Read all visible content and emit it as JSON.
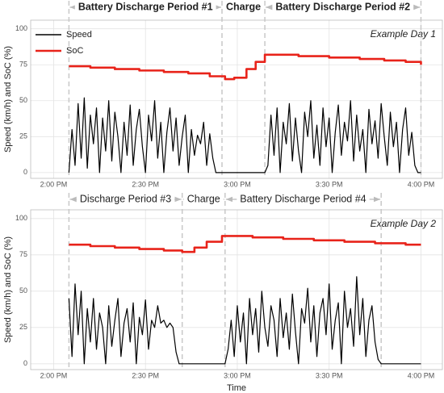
{
  "chart_data": [
    {
      "type": "line",
      "title": "Example Day 1",
      "legend": "top-left",
      "grid": true,
      "ylabel": "Speed (km/h) and SoC (%)",
      "xlim": [
        832.5,
        967
      ],
      "ylim": [
        -4,
        106
      ],
      "xticks": [
        {
          "value": 840,
          "label": "2:00 PM"
        },
        {
          "value": 870,
          "label": "2:30 PM"
        },
        {
          "value": 900,
          "label": "3:00 PM"
        },
        {
          "value": 930,
          "label": "3:30 PM"
        },
        {
          "value": 960,
          "label": "4:00 PM"
        }
      ],
      "yticks": [
        0,
        25,
        50,
        75,
        100
      ],
      "periods": [
        {
          "label": "Battery Discharge Period #1",
          "start": 845,
          "end": 895
        },
        {
          "label": "Charge",
          "start": 895,
          "end": 909
        },
        {
          "label": "Battery Discharge Period #2",
          "start": 909,
          "end": 960
        }
      ],
      "series": [
        {
          "name": "Speed",
          "color": "#000000",
          "step": false,
          "x": [
            845,
            846,
            847,
            848,
            849,
            850,
            851,
            852,
            853,
            854,
            855,
            856,
            857,
            858,
            859,
            860,
            861,
            862,
            863,
            864,
            865,
            866,
            867,
            868,
            869,
            870,
            871,
            872,
            873,
            874,
            875,
            876,
            877,
            878,
            879,
            880,
            881,
            882,
            883,
            884,
            885,
            886,
            887,
            888,
            889,
            890,
            891,
            892,
            893,
            894,
            895,
            896,
            897,
            898,
            899,
            900,
            901,
            902,
            903,
            904,
            905,
            906,
            907,
            908,
            909,
            910,
            911,
            912,
            913,
            914,
            915,
            916,
            917,
            918,
            919,
            920,
            921,
            922,
            923,
            924,
            925,
            926,
            927,
            928,
            929,
            930,
            931,
            932,
            933,
            934,
            935,
            936,
            937,
            938,
            939,
            940,
            941,
            942,
            943,
            944,
            945,
            946,
            947,
            948,
            949,
            950,
            951,
            952,
            953,
            954,
            955,
            956,
            957,
            958,
            959,
            960
          ],
          "values": [
            0,
            30,
            5,
            48,
            10,
            52,
            3,
            40,
            20,
            45,
            0,
            38,
            15,
            50,
            8,
            42,
            25,
            0,
            35,
            12,
            47,
            5,
            30,
            44,
            18,
            0,
            40,
            22,
            50,
            10,
            35,
            0,
            28,
            45,
            15,
            38,
            5,
            25,
            40,
            0,
            30,
            12,
            26,
            20,
            35,
            5,
            27,
            10,
            0,
            0,
            0,
            0,
            0,
            0,
            0,
            0,
            0,
            0,
            0,
            0,
            0,
            0,
            0,
            0,
            0,
            5,
            40,
            12,
            45,
            0,
            35,
            20,
            48,
            8,
            38,
            15,
            0,
            42,
            25,
            50,
            10,
            33,
            5,
            45,
            18,
            38,
            0,
            28,
            47,
            12,
            35,
            22,
            50,
            8,
            40,
            15,
            30,
            0,
            44,
            20,
            36,
            10,
            48,
            25,
            5,
            42,
            18,
            35,
            0,
            30,
            45,
            12,
            28,
            5,
            0,
            0
          ]
        },
        {
          "name": "SoC",
          "color": "#e8231a",
          "step": true,
          "x": [
            845,
            852,
            860,
            868,
            876,
            884,
            891,
            896,
            899,
            903,
            906,
            909,
            920,
            930,
            940,
            948,
            955,
            960
          ],
          "values": [
            74,
            73,
            72,
            71,
            70,
            69,
            67,
            65,
            66,
            72,
            77,
            82,
            81,
            80,
            79,
            78,
            77,
            75
          ]
        }
      ]
    },
    {
      "type": "line",
      "title": "Example Day 2",
      "grid": true,
      "ylabel": "Speed (km/h) and SoC (%)",
      "xlabel": "Time",
      "xlim": [
        832.5,
        967
      ],
      "ylim": [
        -4,
        106
      ],
      "xticks": [
        {
          "value": 840,
          "label": "2:00 PM"
        },
        {
          "value": 870,
          "label": "2:30 PM"
        },
        {
          "value": 900,
          "label": "3:00 PM"
        },
        {
          "value": 930,
          "label": "3:30 PM"
        },
        {
          "value": 960,
          "label": "4:00 PM"
        }
      ],
      "yticks": [
        0,
        25,
        50,
        75,
        100
      ],
      "periods": [
        {
          "label": "Discharge Period #3",
          "start": 845,
          "end": 882
        },
        {
          "label": "Charge",
          "start": 882,
          "end": 896
        },
        {
          "label": "Battery Discharge Period #4",
          "start": 896,
          "end": 947
        }
      ],
      "series": [
        {
          "color": "#000000",
          "step": false,
          "x": [
            845,
            846,
            847,
            848,
            849,
            850,
            851,
            852,
            853,
            854,
            855,
            856,
            857,
            858,
            859,
            860,
            861,
            862,
            863,
            864,
            865,
            866,
            867,
            868,
            869,
            870,
            871,
            872,
            873,
            874,
            875,
            876,
            877,
            878,
            879,
            880,
            881,
            882,
            883,
            884,
            885,
            886,
            887,
            888,
            889,
            890,
            891,
            892,
            893,
            894,
            895,
            896,
            897,
            898,
            899,
            900,
            901,
            902,
            903,
            904,
            905,
            906,
            907,
            908,
            909,
            910,
            911,
            912,
            913,
            914,
            915,
            916,
            917,
            918,
            919,
            920,
            921,
            922,
            923,
            924,
            925,
            926,
            927,
            928,
            929,
            930,
            931,
            932,
            933,
            934,
            935,
            936,
            937,
            938,
            939,
            940,
            941,
            942,
            943,
            944,
            945,
            946,
            947,
            948,
            949,
            950,
            951,
            952,
            953,
            954,
            955,
            956,
            957,
            958,
            959,
            960
          ],
          "values": [
            45,
            5,
            55,
            20,
            50,
            0,
            38,
            15,
            45,
            10,
            35,
            25,
            0,
            40,
            12,
            30,
            45,
            5,
            28,
            38,
            15,
            42,
            0,
            32,
            20,
            44,
            10,
            30,
            25,
            40,
            28,
            30,
            25,
            28,
            25,
            8,
            0,
            0,
            0,
            0,
            0,
            0,
            0,
            0,
            0,
            0,
            0,
            0,
            0,
            0,
            0,
            0,
            10,
            30,
            5,
            40,
            15,
            35,
            0,
            45,
            20,
            38,
            8,
            50,
            25,
            12,
            40,
            30,
            5,
            45,
            18,
            35,
            10,
            48,
            22,
            0,
            38,
            28,
            52,
            15,
            40,
            5,
            35,
            45,
            20,
            55,
            10,
            30,
            42,
            0,
            50,
            25,
            38,
            12,
            60,
            20,
            45,
            5,
            30,
            40,
            15,
            3,
            0,
            0,
            0,
            0,
            0,
            0,
            0,
            0,
            0,
            0,
            0,
            0,
            0,
            0
          ]
        },
        {
          "color": "#e8231a",
          "step": true,
          "x": [
            845,
            852,
            860,
            868,
            876,
            882,
            886,
            890,
            895,
            905,
            915,
            925,
            935,
            945,
            955,
            960
          ],
          "values": [
            82,
            81,
            80,
            79,
            78,
            77,
            80,
            84,
            88,
            87,
            86,
            85,
            84,
            83,
            82,
            82
          ]
        }
      ]
    }
  ]
}
